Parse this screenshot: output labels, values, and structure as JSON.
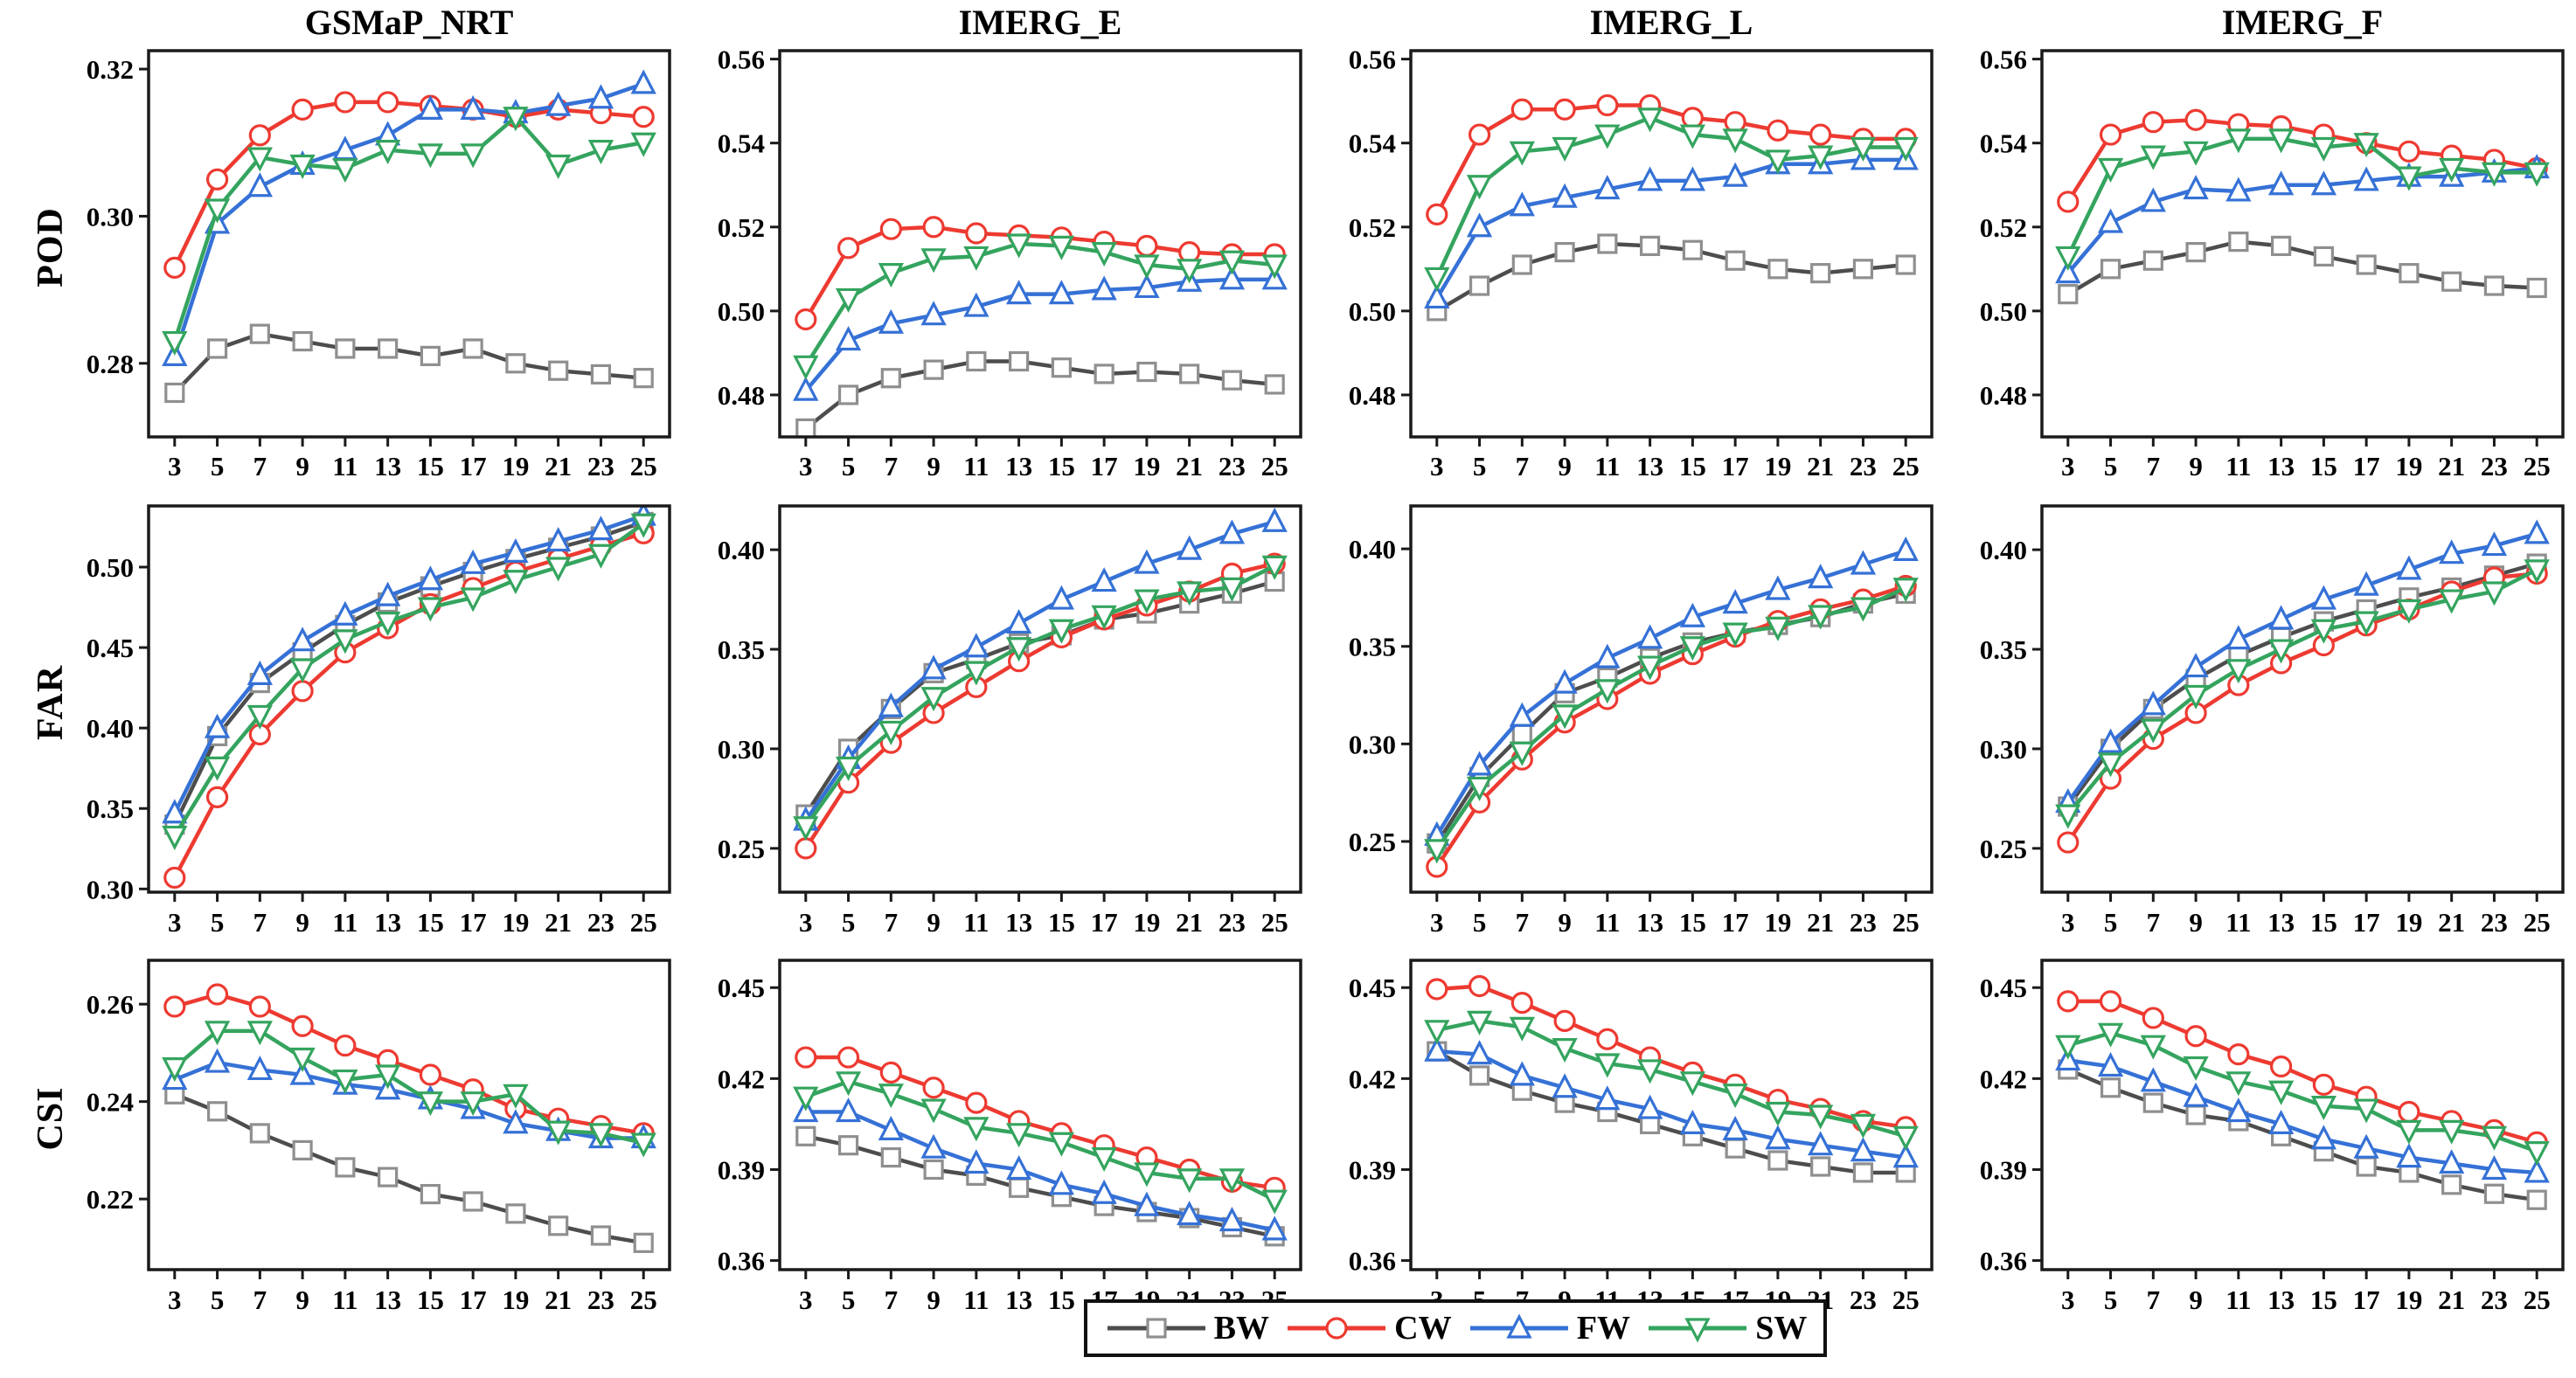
{
  "page": {
    "background": "#ffffff",
    "figure_type": "3x4 grid of line charts comparing precipitation products"
  },
  "legend": {
    "items": [
      {
        "label": "BW",
        "color": "#4d4d4d",
        "marker_color": "#8f8f8f",
        "marker": "square"
      },
      {
        "label": "CW",
        "color": "#ed3a31",
        "marker_color": "#ed3a31",
        "marker": "circle"
      },
      {
        "label": "FW",
        "color": "#3571d6",
        "marker_color": "#3571d6",
        "marker": "triangle-up"
      },
      {
        "label": "SW",
        "color": "#34a45e",
        "marker_color": "#34a45e",
        "marker": "triangle-down"
      }
    ]
  },
  "chart_data": {
    "type": "line",
    "columns": [
      "GSMaP_NRT",
      "IMERG_E",
      "IMERG_L",
      "IMERG_F"
    ],
    "row_labels": [
      "POD",
      "FAR",
      "CSI"
    ],
    "x": [
      3,
      5,
      7,
      9,
      11,
      13,
      15,
      17,
      19,
      21,
      23,
      25
    ],
    "x_tick_labels": [
      "3",
      "5",
      "7",
      "9",
      "11",
      "13",
      "15",
      "17",
      "19",
      "21",
      "23",
      "25"
    ],
    "series_names": [
      "BW",
      "CW",
      "FW",
      "SW"
    ],
    "grid": false,
    "legend_position": "bottom-center",
    "charts": [
      {
        "id": "gsmap-nrt-pod",
        "row": 0,
        "col": 0,
        "metric": "POD",
        "product": "GSMaP_NRT",
        "ylim": [
          0.27,
          0.3225
        ],
        "yticks": [
          "0.28",
          "0.30",
          "0.32"
        ],
        "series": {
          "BW": [
            0.276,
            0.282,
            0.284,
            0.283,
            0.282,
            0.282,
            0.281,
            0.282,
            0.28,
            0.279,
            0.2785,
            0.278
          ],
          "CW": [
            0.293,
            0.305,
            0.311,
            0.3145,
            0.3155,
            0.3155,
            0.315,
            0.3145,
            0.3135,
            0.3145,
            0.314,
            0.3135
          ],
          "FW": [
            0.281,
            0.299,
            0.304,
            0.307,
            0.309,
            0.311,
            0.3145,
            0.3145,
            0.314,
            0.315,
            0.316,
            0.318
          ],
          "SW": [
            0.283,
            0.301,
            0.308,
            0.307,
            0.3065,
            0.309,
            0.3085,
            0.3085,
            0.3135,
            0.307,
            0.309,
            0.31
          ]
        }
      },
      {
        "id": "imerg-e-pod",
        "row": 0,
        "col": 1,
        "metric": "POD",
        "product": "IMERG_E",
        "ylim": [
          0.47,
          0.562
        ],
        "yticks": [
          "0.48",
          "0.50",
          "0.52",
          "0.54",
          "0.56"
        ],
        "series": {
          "BW": [
            0.472,
            0.48,
            0.484,
            0.486,
            0.488,
            0.488,
            0.4865,
            0.485,
            0.4855,
            0.485,
            0.4835,
            0.4825
          ],
          "CW": [
            0.498,
            0.515,
            0.5195,
            0.52,
            0.5185,
            0.518,
            0.5175,
            0.5165,
            0.5155,
            0.514,
            0.5135,
            0.5135
          ],
          "FW": [
            0.481,
            0.493,
            0.497,
            0.499,
            0.501,
            0.504,
            0.504,
            0.505,
            0.5055,
            0.507,
            0.5075,
            0.5075
          ],
          "SW": [
            0.487,
            0.503,
            0.509,
            0.5125,
            0.513,
            0.516,
            0.5155,
            0.514,
            0.511,
            0.51,
            0.512,
            0.511
          ]
        }
      },
      {
        "id": "imerg-l-pod",
        "row": 0,
        "col": 2,
        "metric": "POD",
        "product": "IMERG_L",
        "ylim": [
          0.47,
          0.562
        ],
        "yticks": [
          "0.48",
          "0.50",
          "0.52",
          "0.54",
          "0.56"
        ],
        "series": {
          "BW": [
            0.5,
            0.506,
            0.511,
            0.514,
            0.516,
            0.5155,
            0.5145,
            0.512,
            0.51,
            0.509,
            0.51,
            0.511
          ],
          "CW": [
            0.523,
            0.542,
            0.548,
            0.548,
            0.549,
            0.549,
            0.546,
            0.545,
            0.543,
            0.542,
            0.541,
            0.541
          ],
          "FW": [
            0.503,
            0.52,
            0.525,
            0.527,
            0.529,
            0.531,
            0.531,
            0.532,
            0.535,
            0.535,
            0.536,
            0.536
          ],
          "SW": [
            0.508,
            0.53,
            0.538,
            0.539,
            0.542,
            0.546,
            0.542,
            0.541,
            0.536,
            0.537,
            0.539,
            0.539
          ]
        }
      },
      {
        "id": "imerg-f-pod",
        "row": 0,
        "col": 3,
        "metric": "POD",
        "product": "IMERG_F",
        "ylim": [
          0.47,
          0.562
        ],
        "yticks": [
          "0.48",
          "0.50",
          "0.52",
          "0.54",
          "0.56"
        ],
        "series": {
          "BW": [
            0.504,
            0.51,
            0.512,
            0.514,
            0.5165,
            0.5155,
            0.513,
            0.511,
            0.509,
            0.507,
            0.506,
            0.5055
          ],
          "CW": [
            0.526,
            0.542,
            0.545,
            0.5455,
            0.5445,
            0.544,
            0.542,
            0.54,
            0.538,
            0.537,
            0.536,
            0.534
          ],
          "FW": [
            0.509,
            0.521,
            0.526,
            0.529,
            0.5285,
            0.53,
            0.53,
            0.531,
            0.532,
            0.532,
            0.533,
            0.534
          ],
          "SW": [
            0.513,
            0.534,
            0.537,
            0.538,
            0.541,
            0.541,
            0.539,
            0.54,
            0.532,
            0.534,
            0.533,
            0.533
          ]
        }
      },
      {
        "id": "gsmap-nrt-far",
        "row": 1,
        "col": 0,
        "metric": "FAR",
        "product": "GSMaP_NRT",
        "ylim": [
          0.298,
          0.538
        ],
        "yticks": [
          "0.30",
          "0.35",
          "0.40",
          "0.45",
          "0.50"
        ],
        "series": {
          "BW": [
            0.34,
            0.395,
            0.428,
            0.447,
            0.464,
            0.478,
            0.488,
            0.497,
            0.505,
            0.512,
            0.519,
            0.528
          ],
          "CW": [
            0.307,
            0.357,
            0.396,
            0.423,
            0.447,
            0.462,
            0.477,
            0.487,
            0.497,
            0.505,
            0.513,
            0.521
          ],
          "FW": [
            0.347,
            0.4,
            0.433,
            0.454,
            0.47,
            0.482,
            0.492,
            0.502,
            0.509,
            0.516,
            0.523,
            0.532
          ],
          "SW": [
            0.333,
            0.376,
            0.408,
            0.437,
            0.455,
            0.466,
            0.475,
            0.481,
            0.492,
            0.5,
            0.508,
            0.527
          ]
        }
      },
      {
        "id": "imerg-e-far",
        "row": 1,
        "col": 1,
        "metric": "FAR",
        "product": "IMERG_E",
        "ylim": [
          0.228,
          0.422
        ],
        "yticks": [
          "0.25",
          "0.30",
          "0.35",
          "0.40"
        ],
        "series": {
          "BW": [
            0.267,
            0.3,
            0.32,
            0.338,
            0.345,
            0.353,
            0.357,
            0.365,
            0.368,
            0.373,
            0.378,
            0.384
          ],
          "CW": [
            0.25,
            0.283,
            0.303,
            0.318,
            0.331,
            0.344,
            0.356,
            0.365,
            0.372,
            0.379,
            0.388,
            0.393
          ],
          "FW": [
            0.264,
            0.295,
            0.321,
            0.34,
            0.351,
            0.363,
            0.375,
            0.384,
            0.393,
            0.4,
            0.408,
            0.414
          ],
          "SW": [
            0.261,
            0.291,
            0.309,
            0.326,
            0.339,
            0.351,
            0.36,
            0.367,
            0.375,
            0.379,
            0.381,
            0.392
          ]
        }
      },
      {
        "id": "imerg-l-far",
        "row": 1,
        "col": 2,
        "metric": "FAR",
        "product": "IMERG_L",
        "ylim": [
          0.224,
          0.422
        ],
        "yticks": [
          "0.25",
          "0.30",
          "0.35",
          "0.40"
        ],
        "series": {
          "BW": [
            0.249,
            0.283,
            0.305,
            0.326,
            0.334,
            0.344,
            0.352,
            0.357,
            0.361,
            0.365,
            0.372,
            0.377
          ],
          "CW": [
            0.237,
            0.27,
            0.292,
            0.311,
            0.323,
            0.336,
            0.346,
            0.355,
            0.363,
            0.369,
            0.374,
            0.381
          ],
          "FW": [
            0.253,
            0.289,
            0.314,
            0.331,
            0.344,
            0.354,
            0.365,
            0.372,
            0.379,
            0.385,
            0.392,
            0.399
          ],
          "SW": [
            0.246,
            0.278,
            0.296,
            0.315,
            0.328,
            0.34,
            0.35,
            0.357,
            0.36,
            0.366,
            0.37,
            0.38
          ]
        }
      },
      {
        "id": "imerg-f-far",
        "row": 1,
        "col": 3,
        "metric": "FAR",
        "product": "IMERG_F",
        "ylim": [
          0.228,
          0.422
        ],
        "yticks": [
          "0.25",
          "0.30",
          "0.35",
          "0.40"
        ],
        "series": {
          "BW": [
            0.271,
            0.3,
            0.32,
            0.335,
            0.347,
            0.356,
            0.364,
            0.37,
            0.376,
            0.381,
            0.387,
            0.393
          ],
          "CW": [
            0.253,
            0.285,
            0.305,
            0.318,
            0.332,
            0.343,
            0.352,
            0.362,
            0.37,
            0.379,
            0.386,
            0.388
          ],
          "FW": [
            0.273,
            0.303,
            0.322,
            0.341,
            0.355,
            0.365,
            0.375,
            0.382,
            0.39,
            0.398,
            0.402,
            0.408
          ],
          "SW": [
            0.267,
            0.293,
            0.31,
            0.327,
            0.34,
            0.35,
            0.36,
            0.364,
            0.37,
            0.375,
            0.379,
            0.39
          ]
        }
      },
      {
        "id": "gsmap-nrt-csi",
        "row": 2,
        "col": 0,
        "metric": "CSI",
        "product": "GSMaP_NRT",
        "ylim": [
          0.2055,
          0.269
        ],
        "yticks": [
          "0.22",
          "0.24",
          "0.26"
        ],
        "series": {
          "BW": [
            0.2415,
            0.238,
            0.2335,
            0.23,
            0.2265,
            0.2245,
            0.221,
            0.2195,
            0.217,
            0.2145,
            0.2125,
            0.211
          ],
          "CW": [
            0.2595,
            0.262,
            0.2595,
            0.2555,
            0.2515,
            0.2485,
            0.2455,
            0.2425,
            0.2385,
            0.2365,
            0.235,
            0.2335
          ],
          "FW": [
            0.2445,
            0.248,
            0.2465,
            0.2455,
            0.2435,
            0.2425,
            0.2405,
            0.2385,
            0.2355,
            0.234,
            0.2325,
            0.2325
          ],
          "SW": [
            0.247,
            0.2545,
            0.2545,
            0.249,
            0.2445,
            0.2455,
            0.24,
            0.24,
            0.2415,
            0.234,
            0.2335,
            0.2315
          ]
        }
      },
      {
        "id": "imerg-e-csi",
        "row": 2,
        "col": 1,
        "metric": "CSI",
        "product": "IMERG_E",
        "ylim": [
          0.357,
          0.459
        ],
        "yticks": [
          "0.36",
          "0.39",
          "0.42",
          "0.45"
        ],
        "series": {
          "BW": [
            0.401,
            0.398,
            0.394,
            0.39,
            0.388,
            0.384,
            0.381,
            0.378,
            0.376,
            0.374,
            0.371,
            0.368
          ],
          "CW": [
            0.427,
            0.427,
            0.422,
            0.417,
            0.412,
            0.406,
            0.402,
            0.398,
            0.394,
            0.39,
            0.386,
            0.384
          ],
          "FW": [
            0.409,
            0.409,
            0.403,
            0.397,
            0.392,
            0.39,
            0.385,
            0.382,
            0.378,
            0.375,
            0.373,
            0.37
          ],
          "SW": [
            0.414,
            0.419,
            0.415,
            0.41,
            0.404,
            0.402,
            0.399,
            0.394,
            0.389,
            0.387,
            0.387,
            0.38
          ]
        }
      },
      {
        "id": "imerg-l-csi",
        "row": 2,
        "col": 2,
        "metric": "CSI",
        "product": "IMERG_L",
        "ylim": [
          0.357,
          0.459
        ],
        "yticks": [
          "0.36",
          "0.39",
          "0.42",
          "0.45"
        ],
        "series": {
          "BW": [
            0.429,
            0.421,
            0.416,
            0.412,
            0.409,
            0.405,
            0.401,
            0.397,
            0.393,
            0.391,
            0.389,
            0.389
          ],
          "CW": [
            0.4495,
            0.4505,
            0.445,
            0.439,
            0.433,
            0.427,
            0.422,
            0.418,
            0.413,
            0.41,
            0.406,
            0.404
          ],
          "FW": [
            0.429,
            0.428,
            0.421,
            0.417,
            0.413,
            0.41,
            0.405,
            0.403,
            0.4,
            0.398,
            0.396,
            0.394
          ],
          "SW": [
            0.436,
            0.439,
            0.437,
            0.43,
            0.425,
            0.423,
            0.419,
            0.415,
            0.409,
            0.408,
            0.405,
            0.401
          ]
        }
      },
      {
        "id": "imerg-f-csi",
        "row": 2,
        "col": 3,
        "metric": "CSI",
        "product": "IMERG_F",
        "ylim": [
          0.357,
          0.459
        ],
        "yticks": [
          "0.36",
          "0.39",
          "0.42",
          "0.45"
        ],
        "series": {
          "BW": [
            0.423,
            0.417,
            0.412,
            0.408,
            0.406,
            0.401,
            0.396,
            0.391,
            0.389,
            0.385,
            0.382,
            0.38
          ],
          "CW": [
            0.4455,
            0.4455,
            0.44,
            0.434,
            0.428,
            0.424,
            0.418,
            0.414,
            0.409,
            0.406,
            0.403,
            0.399
          ],
          "FW": [
            0.426,
            0.424,
            0.419,
            0.414,
            0.409,
            0.405,
            0.4,
            0.397,
            0.394,
            0.392,
            0.39,
            0.389
          ],
          "SW": [
            0.431,
            0.435,
            0.431,
            0.424,
            0.419,
            0.416,
            0.411,
            0.41,
            0.403,
            0.403,
            0.401,
            0.396
          ]
        }
      }
    ]
  }
}
